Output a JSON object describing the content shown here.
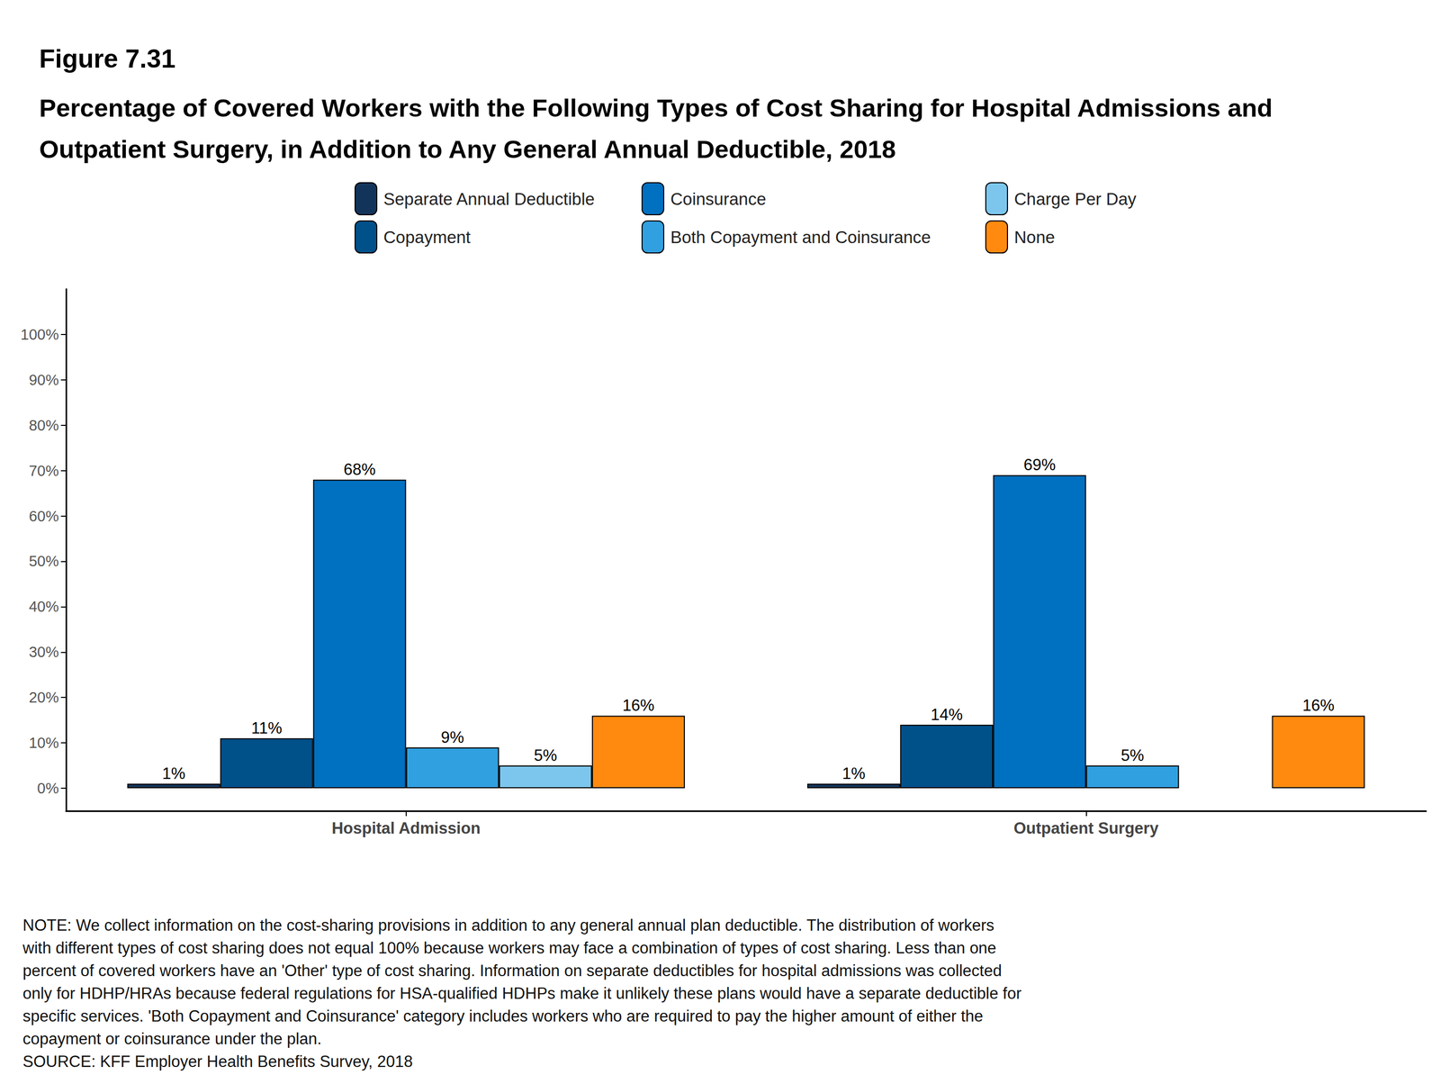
{
  "chart_data": {
    "type": "bar",
    "title": "Figure 7.31",
    "subtitle": "Percentage of Covered Workers with the Following Types of Cost Sharing for Hospital Admissions and Outpatient Surgery, in Addition to Any General Annual Deductible, 2018",
    "categories": [
      "Hospital Admission",
      "Outpatient Surgery"
    ],
    "series": [
      {
        "name": "Separate Annual Deductible",
        "color": "#13345a",
        "values": [
          1,
          1
        ],
        "value_labels": [
          "1%",
          "1%"
        ]
      },
      {
        "name": "Copayment",
        "color": "#00508a",
        "values": [
          11,
          14
        ],
        "value_labels": [
          "11%",
          "14%"
        ]
      },
      {
        "name": "Coinsurance",
        "color": "#0070c0",
        "values": [
          68,
          69
        ],
        "value_labels": [
          "68%",
          "69%"
        ]
      },
      {
        "name": "Both Copayment and Coinsurance",
        "color": "#30a0e0",
        "values": [
          9,
          5
        ],
        "value_labels": [
          "9%",
          "5%"
        ]
      },
      {
        "name": "Charge Per Day",
        "color": "#7cc6ee",
        "values": [
          5,
          null
        ],
        "value_labels": [
          "5%",
          null
        ]
      },
      {
        "name": "None",
        "color": "#ff8a0f",
        "values": [
          16,
          16
        ],
        "value_labels": [
          "16%",
          "16%"
        ]
      }
    ],
    "ylim": [
      -5,
      110
    ],
    "yticks": [
      {
        "value": 0,
        "label": "0%"
      },
      {
        "value": 10,
        "label": "10%"
      },
      {
        "value": 20,
        "label": "20%"
      },
      {
        "value": 30,
        "label": "30%"
      },
      {
        "value": 40,
        "label": "40%"
      },
      {
        "value": 50,
        "label": "50%"
      },
      {
        "value": 60,
        "label": "60%"
      },
      {
        "value": 70,
        "label": "70%"
      },
      {
        "value": 80,
        "label": "80%"
      },
      {
        "value": 90,
        "label": "90%"
      },
      {
        "value": 100,
        "label": "100%"
      }
    ],
    "grid": false,
    "legend": "top",
    "data_labels": true,
    "annotations": [
      "NOTE: We collect information on the cost-sharing provisions in addition to any general annual plan deductible. The distribution of workers with different types of cost sharing does not equal 100% because workers may face a combination of types of cost sharing. Less than one percent of covered workers have an 'Other' type of cost sharing. Information on separate deductibles for hospital admissions was collected only for HDHP/HRAs because federal regulations for HSA-qualified HDHPs make it unlikely these plans would have a separate deductible for specific services. 'Both Copayment and Coinsurance' category includes workers who are required to pay the higher amount of either the copayment or coinsurance under the plan.",
      "SOURCE: KFF Employer Health Benefits Survey, 2018"
    ]
  }
}
